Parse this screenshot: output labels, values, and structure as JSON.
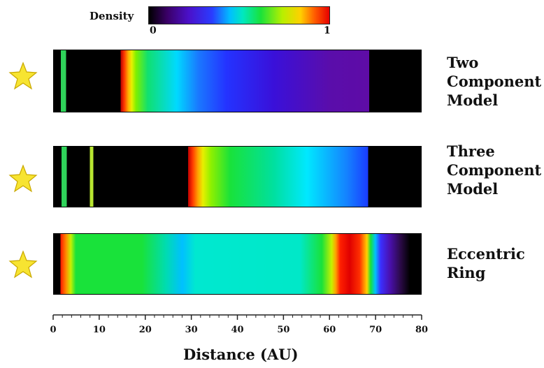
{
  "colorbar": {
    "title": "Density",
    "min_label": "0",
    "max_label": "1",
    "colors": [
      "#000000",
      "#3a0066",
      "#4b10c9",
      "#2a3cff",
      "#00bfff",
      "#00e8c0",
      "#19e23a",
      "#b8ef00",
      "#ffd000",
      "#ff5a00",
      "#e60000"
    ]
  },
  "models": [
    {
      "label_lines": [
        "Two",
        "Component",
        "Model"
      ],
      "icon": "star-icon"
    },
    {
      "label_lines": [
        "Three",
        "Component",
        "Model"
      ],
      "icon": "star-icon"
    },
    {
      "label_lines": [
        "Eccentric",
        "Ring"
      ],
      "icon": "star-icon"
    }
  ],
  "axis": {
    "title": "Distance (AU)",
    "range": [
      0,
      80
    ],
    "ticks": [
      0,
      10,
      20,
      30,
      40,
      50,
      60,
      70,
      80
    ],
    "tick_labels": [
      "0",
      "10",
      "20",
      "30",
      "40",
      "50",
      "60",
      "70",
      "80"
    ]
  },
  "star_color": "#f7e431"
}
